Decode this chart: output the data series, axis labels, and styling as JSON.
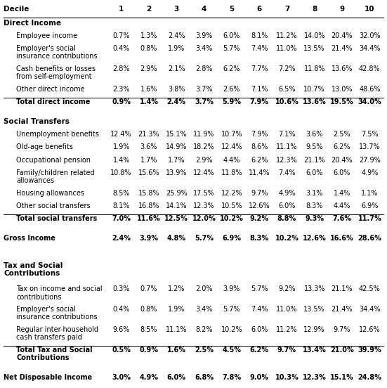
{
  "columns": [
    "Decile",
    "1",
    "2",
    "3",
    "4",
    "5",
    "6",
    "7",
    "8",
    "9",
    "10"
  ],
  "rows": [
    {
      "label": "Direct Income",
      "type": "section_header",
      "indent": 0
    },
    {
      "label": "Employee income",
      "type": "data",
      "indent": 1,
      "values": [
        "0.7%",
        "1.3%",
        "2.4%",
        "3.9%",
        "6.0%",
        "8.1%",
        "11.2%",
        "14.0%",
        "20.4%",
        "32.0%"
      ]
    },
    {
      "label": "Employer's social\ninsurance contributions",
      "type": "data",
      "indent": 1,
      "values": [
        "0.4%",
        "0.8%",
        "1.9%",
        "3.4%",
        "5.7%",
        "7.4%",
        "11.0%",
        "13.5%",
        "21.4%",
        "34.4%"
      ]
    },
    {
      "label": "Cash benefits or losses\nfrom self-employment",
      "type": "data",
      "indent": 1,
      "values": [
        "2.8%",
        "2.9%",
        "2.1%",
        "2.8%",
        "6.2%",
        "7.7%",
        "7.2%",
        "11.8%",
        "13.6%",
        "42.8%"
      ]
    },
    {
      "label": "Other direct income",
      "type": "data",
      "indent": 1,
      "values": [
        "2.3%",
        "1.6%",
        "3.8%",
        "3.7%",
        "2.6%",
        "7.1%",
        "6.5%",
        "10.7%",
        "13.0%",
        "48.6%"
      ]
    },
    {
      "label": "Total direct income",
      "type": "total",
      "indent": 1,
      "values": [
        "0.9%",
        "1.4%",
        "2.4%",
        "3.7%",
        "5.9%",
        "7.9%",
        "10.6%",
        "13.6%",
        "19.5%",
        "34.0%"
      ]
    },
    {
      "label": "",
      "type": "spacer",
      "size": "large"
    },
    {
      "label": "Social Transfers",
      "type": "section_header",
      "indent": 0
    },
    {
      "label": "Unemployment benefits",
      "type": "data",
      "indent": 1,
      "values": [
        "12.4%",
        "21.3%",
        "15.1%",
        "11.9%",
        "10.7%",
        "7.9%",
        "7.1%",
        "3.6%",
        "2.5%",
        "7.5%"
      ]
    },
    {
      "label": "Old-age benefits",
      "type": "data",
      "indent": 1,
      "values": [
        "1.9%",
        "3.6%",
        "14.9%",
        "18.2%",
        "12.4%",
        "8.6%",
        "11.1%",
        "9.5%",
        "6.2%",
        "13.7%"
      ]
    },
    {
      "label": "Occupational pension",
      "type": "data",
      "indent": 1,
      "values": [
        "1.4%",
        "1.7%",
        "1.7%",
        "2.9%",
        "4.4%",
        "6.2%",
        "12.3%",
        "21.1%",
        "20.4%",
        "27.9%"
      ]
    },
    {
      "label": "Family/children related\nallowances",
      "type": "data",
      "indent": 1,
      "values": [
        "10.8%",
        "15.6%",
        "13.9%",
        "12.4%",
        "11.8%",
        "11.4%",
        "7.4%",
        "6.0%",
        "6.0%",
        "4.9%"
      ]
    },
    {
      "label": "Housing allowances",
      "type": "data",
      "indent": 1,
      "values": [
        "8.5%",
        "15.8%",
        "25.9%",
        "17.5%",
        "12.2%",
        "9.7%",
        "4.9%",
        "3.1%",
        "1.4%",
        "1.1%"
      ]
    },
    {
      "label": "Other social transfers",
      "type": "data",
      "indent": 1,
      "values": [
        "8.1%",
        "16.8%",
        "14.1%",
        "12.3%",
        "10.5%",
        "12.6%",
        "6.0%",
        "8.3%",
        "4.4%",
        "6.9%"
      ]
    },
    {
      "label": "Total social transfers",
      "type": "total",
      "indent": 1,
      "values": [
        "7.0%",
        "11.6%",
        "12.5%",
        "12.0%",
        "10.2%",
        "9.2%",
        "8.8%",
        "9.3%",
        "7.6%",
        "11.7%"
      ]
    },
    {
      "label": "",
      "type": "spacer",
      "size": "large"
    },
    {
      "label": "Gross Income",
      "type": "gross",
      "indent": 0,
      "values": [
        "2.4%",
        "3.9%",
        "4.8%",
        "5.7%",
        "6.9%",
        "8.3%",
        "10.2%",
        "12.6%",
        "16.6%",
        "28.6%"
      ]
    },
    {
      "label": "",
      "type": "spacer",
      "size": "large"
    },
    {
      "label": "",
      "type": "spacer",
      "size": "large"
    },
    {
      "label": "Tax and Social\nContributions",
      "type": "section_header",
      "indent": 0
    },
    {
      "label": "Tax on income and social\ncontributions",
      "type": "data",
      "indent": 1,
      "values": [
        "0.3%",
        "0.7%",
        "1.2%",
        "2.0%",
        "3.9%",
        "5.7%",
        "9.2%",
        "13.3%",
        "21.1%",
        "42.5%"
      ]
    },
    {
      "label": "Employer's social\ninsurance contributions",
      "type": "data",
      "indent": 1,
      "values": [
        "0.4%",
        "0.8%",
        "1.9%",
        "3.4%",
        "5.7%",
        "7.4%",
        "11.0%",
        "13.5%",
        "21.4%",
        "34.4%"
      ]
    },
    {
      "label": "Regular inter-household\ncash transfers paid",
      "type": "data",
      "indent": 1,
      "values": [
        "9.6%",
        "8.5%",
        "11.1%",
        "8.2%",
        "10.2%",
        "6.0%",
        "11.2%",
        "12.9%",
        "9.7%",
        "12.6%"
      ]
    },
    {
      "label": "Total Tax and Social\nContributions",
      "type": "total",
      "indent": 1,
      "values": [
        "0.5%",
        "0.9%",
        "1.6%",
        "2.5%",
        "4.5%",
        "6.2%",
        "9.7%",
        "13.4%",
        "21.0%",
        "39.9%"
      ]
    },
    {
      "label": "",
      "type": "spacer",
      "size": "large"
    },
    {
      "label": "Net Disposable Income",
      "type": "net",
      "indent": 0,
      "values": [
        "3.0%",
        "4.9%",
        "6.0%",
        "6.8%",
        "7.8%",
        "9.0%",
        "10.3%",
        "12.3%",
        "15.1%",
        "24.8%"
      ]
    }
  ],
  "bg_color": "#ffffff",
  "text_color": "#000000",
  "font_size": 7.0,
  "bold_font_size": 7.0,
  "header_font_size": 7.5
}
